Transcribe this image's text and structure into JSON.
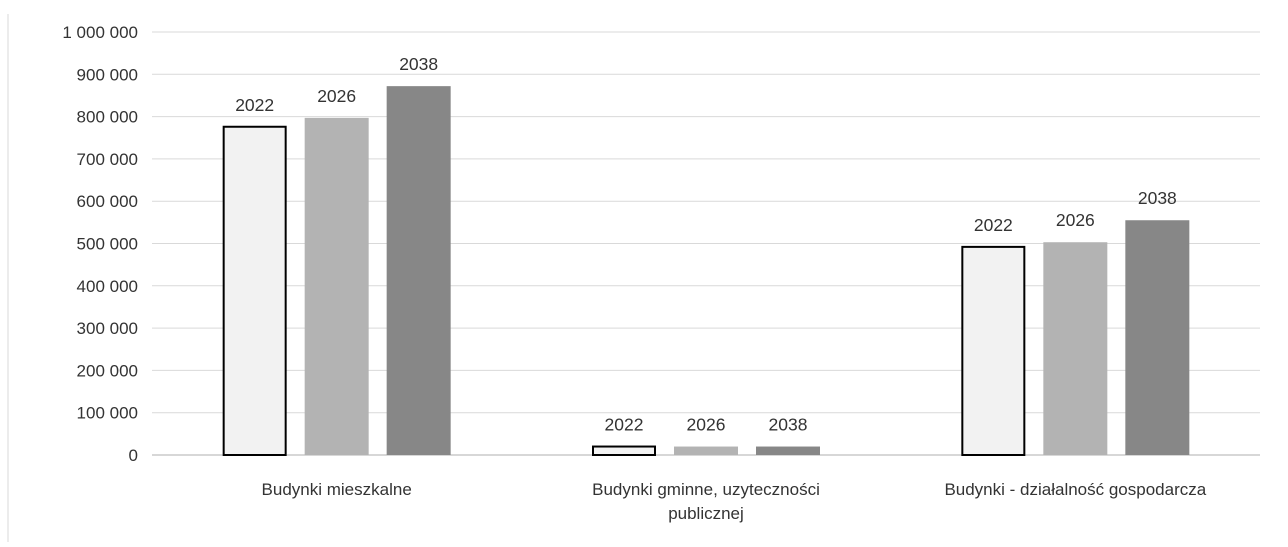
{
  "chart_data": {
    "type": "bar",
    "title": "",
    "xlabel": "",
    "ylabel": "",
    "ylim": [
      0,
      1000000
    ],
    "y_ticks": [
      0,
      100000,
      200000,
      300000,
      400000,
      500000,
      600000,
      700000,
      800000,
      900000,
      1000000
    ],
    "y_tick_labels": [
      "0",
      "100 000",
      "200 000",
      "300 000",
      "400 000",
      "500 000",
      "600 000",
      "700 000",
      "800 000",
      "900 000",
      "1 000 000"
    ],
    "grid": true,
    "legend": "none",
    "categories": [
      [
        "Budynki mieszkalne"
      ],
      [
        "Budynki gminne, uzyteczności",
        "publicznej"
      ],
      [
        "Budynki - działalność gospodarcza"
      ]
    ],
    "series": [
      {
        "label": "2022",
        "values": [
          776000,
          20000,
          492000
        ],
        "color": "#f2f2f2",
        "stroke": "#000000"
      },
      {
        "label": "2026",
        "values": [
          797000,
          20000,
          503000
        ],
        "color": "#b3b3b3",
        "stroke": "none"
      },
      {
        "label": "2038",
        "values": [
          872000,
          20000,
          555000
        ],
        "color": "#878787",
        "stroke": "none"
      }
    ],
    "colors": {
      "grid": "#d9d9d9",
      "axis": "#bfbfbf",
      "text": "#333333"
    }
  }
}
